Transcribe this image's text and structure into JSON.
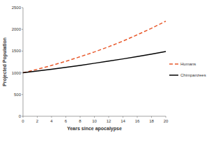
{
  "chart_data": {
    "type": "line",
    "x_label": "Years since apocalypse",
    "y_label": "Projected Population",
    "x": [
      0,
      2,
      4,
      6,
      8,
      10,
      12,
      14,
      16,
      18,
      20
    ],
    "series": [
      {
        "name": "Humans",
        "color": "#e8582a",
        "line_style": "dashed",
        "values": [
          1000,
          1080,
          1170,
          1265,
          1370,
          1480,
          1600,
          1730,
          1875,
          2025,
          2190
        ]
      },
      {
        "name": "Chimpanzees",
        "color": "#000000",
        "line_style": "solid",
        "values": [
          1000,
          1040,
          1080,
          1125,
          1170,
          1220,
          1270,
          1320,
          1375,
          1430,
          1490
        ]
      }
    ],
    "xlim": [
      0,
      20
    ],
    "xticks": [
      0,
      2,
      4,
      6,
      8,
      10,
      12,
      14,
      16,
      18,
      20
    ],
    "ylim": [
      0,
      2500
    ],
    "yticks": [
      0,
      500,
      1000,
      1500,
      2000,
      2500
    ],
    "grid": false,
    "legend": "right"
  }
}
